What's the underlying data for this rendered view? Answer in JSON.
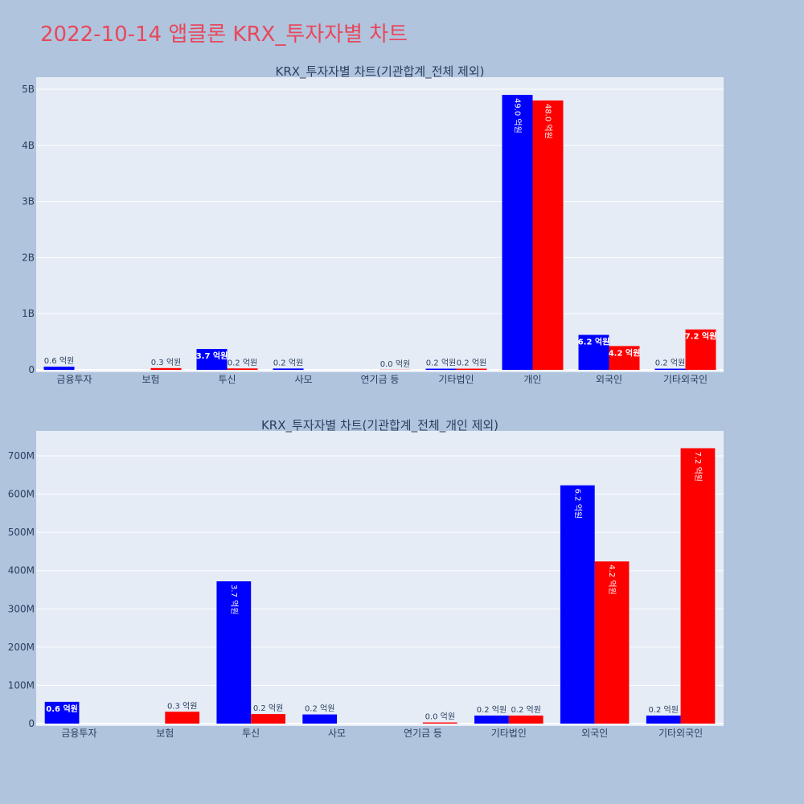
{
  "page_title": "2022-10-14 앱클론 KRX_투자자별 차트",
  "colors": {
    "background": "#b0c4de",
    "plot_bg": "#e5ecf6",
    "buy": "#0000ff",
    "sell": "#ff0000",
    "title": "#e8485c"
  },
  "chart_data": [
    {
      "type": "bar",
      "title": "KRX_투자자별 차트(기관합계_전체 제외)",
      "categories": [
        "금융투자",
        "보험",
        "투신",
        "사모",
        "연기금 등",
        "기타법인",
        "개인",
        "외국인",
        "기타외국인"
      ],
      "series": [
        {
          "values": [
            57000000,
            0,
            372000000,
            24000000,
            0,
            21000000,
            4900000000,
            623000000,
            21000000
          ],
          "labels": [
            "0.6 억원",
            "",
            "3.7 억원",
            "0.2 억원",
            "",
            "0.2 억원",
            "49.0 억원",
            "6.2 억원",
            "0.2 억원"
          ]
        },
        {
          "values": [
            0,
            31000000,
            25000000,
            0,
            3000000,
            21000000,
            4800000000,
            424000000,
            720000000
          ],
          "labels": [
            "",
            "0.3 억원",
            "0.2 억원",
            "",
            "0.0 억원",
            "0.2 억원",
            "48.0 억원",
            "4.2 억원",
            "7.2 억원"
          ]
        }
      ],
      "ylim": [
        0,
        5000000000
      ],
      "yticks": [
        0,
        1000000000,
        2000000000,
        3000000000,
        4000000000,
        5000000000
      ],
      "ytick_labels": [
        "0",
        "1B",
        "2B",
        "3B",
        "4B",
        "5B"
      ],
      "grid": true
    },
    {
      "type": "bar",
      "title": "KRX_투자자별 차트(기관합계_전체_개인 제외)",
      "categories": [
        "금융투자",
        "보험",
        "투신",
        "사모",
        "연기금 등",
        "기타법인",
        "외국인",
        "기타외국인"
      ],
      "series": [
        {
          "values": [
            57000000,
            0,
            372000000,
            24000000,
            0,
            21000000,
            623000000,
            21000000
          ],
          "labels": [
            "0.6 억원",
            "",
            "3.7 억원",
            "0.2 억원",
            "",
            "0.2 억원",
            "6.2 억원",
            "0.2 억원"
          ]
        },
        {
          "values": [
            0,
            31000000,
            25000000,
            0,
            3000000,
            21000000,
            424000000,
            720000000
          ],
          "labels": [
            "",
            "0.3 억원",
            "0.2 억원",
            "",
            "0.0 억원",
            "0.2 억원",
            "4.2 억원",
            "7.2 억원"
          ]
        }
      ],
      "ylim": [
        0,
        700000000
      ],
      "yticks": [
        0,
        100000000,
        200000000,
        300000000,
        400000000,
        500000000,
        600000000,
        700000000
      ],
      "ytick_labels": [
        "0",
        "100M",
        "200M",
        "300M",
        "400M",
        "500M",
        "600M",
        "700M"
      ],
      "grid": true
    }
  ]
}
